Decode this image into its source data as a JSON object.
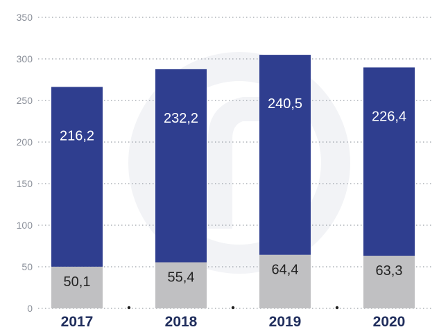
{
  "chart_data": {
    "type": "bar",
    "stacked": true,
    "categories": [
      "2017",
      "2018",
      "2019",
      "2020"
    ],
    "series": [
      {
        "values": [
          50.1,
          55.4,
          64.4,
          63.3
        ],
        "labels": [
          "50,1",
          "55,4",
          "64,4",
          "63,3"
        ],
        "color": "#c0c0c2",
        "label_color": "#222222"
      },
      {
        "values": [
          216.2,
          232.2,
          240.5,
          226.4
        ],
        "labels": [
          "216,2",
          "232,2",
          "240,5",
          "226,4"
        ],
        "color": "#2f3e8f",
        "label_color": "#ffffff"
      }
    ],
    "yticks": [
      "0",
      "50",
      "100",
      "150",
      "200",
      "250",
      "300",
      "350"
    ],
    "ylim": [
      0,
      350
    ],
    "grid": true,
    "gridline_color": "#9aa0a8",
    "legend": "none"
  }
}
